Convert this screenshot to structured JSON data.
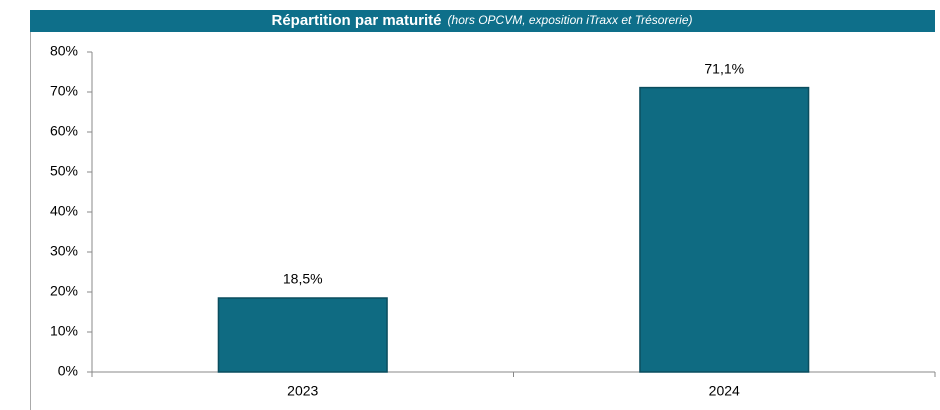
{
  "chart_data": {
    "type": "bar",
    "title": "Répartition par maturité",
    "subtitle": "(hors OPCVM, exposition iTraxx et Trésorerie)",
    "categories": [
      "2023",
      "2024"
    ],
    "values": [
      18.5,
      71.1
    ],
    "value_labels": [
      "18,5%",
      "71,1%"
    ],
    "color": "#0f6b82",
    "ylim": [
      0,
      80
    ],
    "yticks": [
      {
        "value": 0,
        "label": "0%"
      },
      {
        "value": 10,
        "label": "10%"
      },
      {
        "value": 20,
        "label": "20%"
      },
      {
        "value": 30,
        "label": "30%"
      },
      {
        "value": 40,
        "label": "40%"
      },
      {
        "value": 50,
        "label": "50%"
      },
      {
        "value": 60,
        "label": "60%"
      },
      {
        "value": 70,
        "label": "70%"
      },
      {
        "value": 80,
        "label": "80%"
      }
    ],
    "grid": false
  }
}
